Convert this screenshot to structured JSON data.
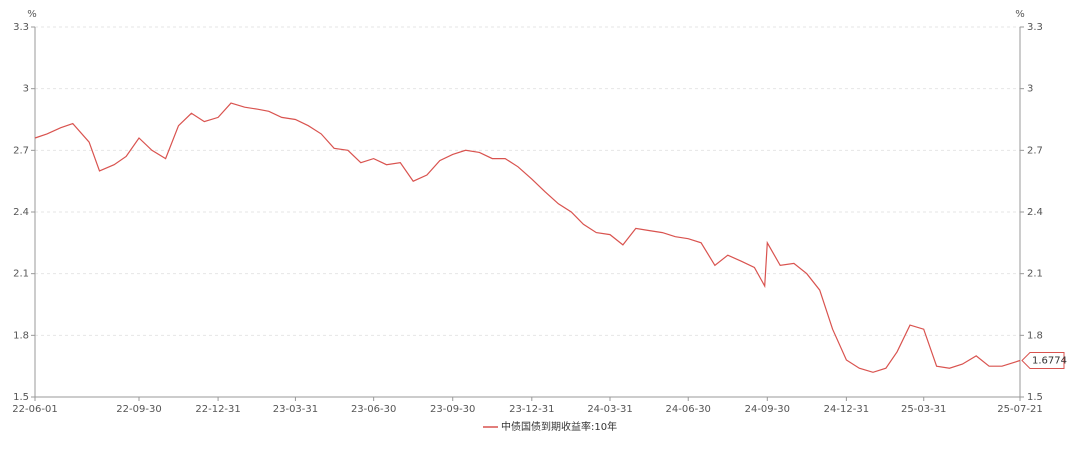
{
  "chart_data": {
    "type": "line",
    "y_unit": "%",
    "y2_unit": "%",
    "x": [
      "22-06-01",
      "22-06-15",
      "22-07-01",
      "22-07-15",
      "22-08-03",
      "22-08-15",
      "22-09-01",
      "22-09-15",
      "22-09-30",
      "22-10-15",
      "22-10-31",
      "22-11-15",
      "22-11-30",
      "22-12-15",
      "22-12-31",
      "23-01-15",
      "23-01-31",
      "23-02-15",
      "23-02-28",
      "23-03-15",
      "23-03-31",
      "23-04-15",
      "23-04-30",
      "23-05-15",
      "23-05-31",
      "23-06-15",
      "23-06-30",
      "23-07-15",
      "23-07-31",
      "23-08-15",
      "23-08-31",
      "23-09-15",
      "23-09-30",
      "23-10-15",
      "23-10-31",
      "23-11-15",
      "23-11-30",
      "23-12-15",
      "23-12-31",
      "24-01-15",
      "24-01-31",
      "24-02-15",
      "24-02-29",
      "24-03-15",
      "24-03-31",
      "24-04-15",
      "24-04-30",
      "24-05-15",
      "24-05-31",
      "24-06-15",
      "24-06-30",
      "24-07-15",
      "24-07-31",
      "24-08-15",
      "24-08-31",
      "24-09-15",
      "24-09-27",
      "24-09-30",
      "24-10-15",
      "24-10-31",
      "24-11-15",
      "24-11-30",
      "24-12-15",
      "24-12-31",
      "25-01-15",
      "25-01-31",
      "25-02-15",
      "25-02-28",
      "25-03-15",
      "25-03-31",
      "25-04-15",
      "25-04-30",
      "25-05-15",
      "25-05-31",
      "25-06-15",
      "25-06-30",
      "25-07-21"
    ],
    "series": [
      {
        "name": "中债国债到期收益率:10年",
        "color": "#d9534f",
        "values": [
          2.76,
          2.78,
          2.81,
          2.83,
          2.74,
          2.6,
          2.63,
          2.67,
          2.76,
          2.7,
          2.66,
          2.82,
          2.88,
          2.84,
          2.86,
          2.93,
          2.91,
          2.9,
          2.89,
          2.86,
          2.85,
          2.82,
          2.78,
          2.71,
          2.7,
          2.64,
          2.66,
          2.63,
          2.64,
          2.55,
          2.58,
          2.65,
          2.68,
          2.7,
          2.69,
          2.66,
          2.66,
          2.62,
          2.56,
          2.5,
          2.44,
          2.4,
          2.34,
          2.3,
          2.29,
          2.24,
          2.32,
          2.31,
          2.3,
          2.28,
          2.27,
          2.25,
          2.14,
          2.19,
          2.16,
          2.13,
          2.04,
          2.25,
          2.14,
          2.15,
          2.1,
          2.02,
          1.83,
          1.68,
          1.64,
          1.62,
          1.64,
          1.72,
          1.85,
          1.83,
          1.65,
          1.64,
          1.66,
          1.7,
          1.65,
          1.65,
          1.6774
        ]
      }
    ],
    "xlim": [
      "22-06-01",
      "25-07-21"
    ],
    "xticks": [
      "22-06-01",
      "22-09-30",
      "22-12-31",
      "23-03-31",
      "23-06-30",
      "23-09-30",
      "23-12-31",
      "24-03-31",
      "24-06-30",
      "24-09-30",
      "24-12-31",
      "25-03-31",
      "25-07-21"
    ],
    "ylim": [
      1.5,
      3.3
    ],
    "yticks": [
      1.5,
      1.8,
      2.1,
      2.4,
      2.7,
      3,
      3.3
    ],
    "y2lim": [
      1.5,
      3.3
    ],
    "y2ticks": [
      1.5,
      1.8,
      2.1,
      2.4,
      2.7,
      3,
      3.3
    ],
    "grid": true
  }
}
